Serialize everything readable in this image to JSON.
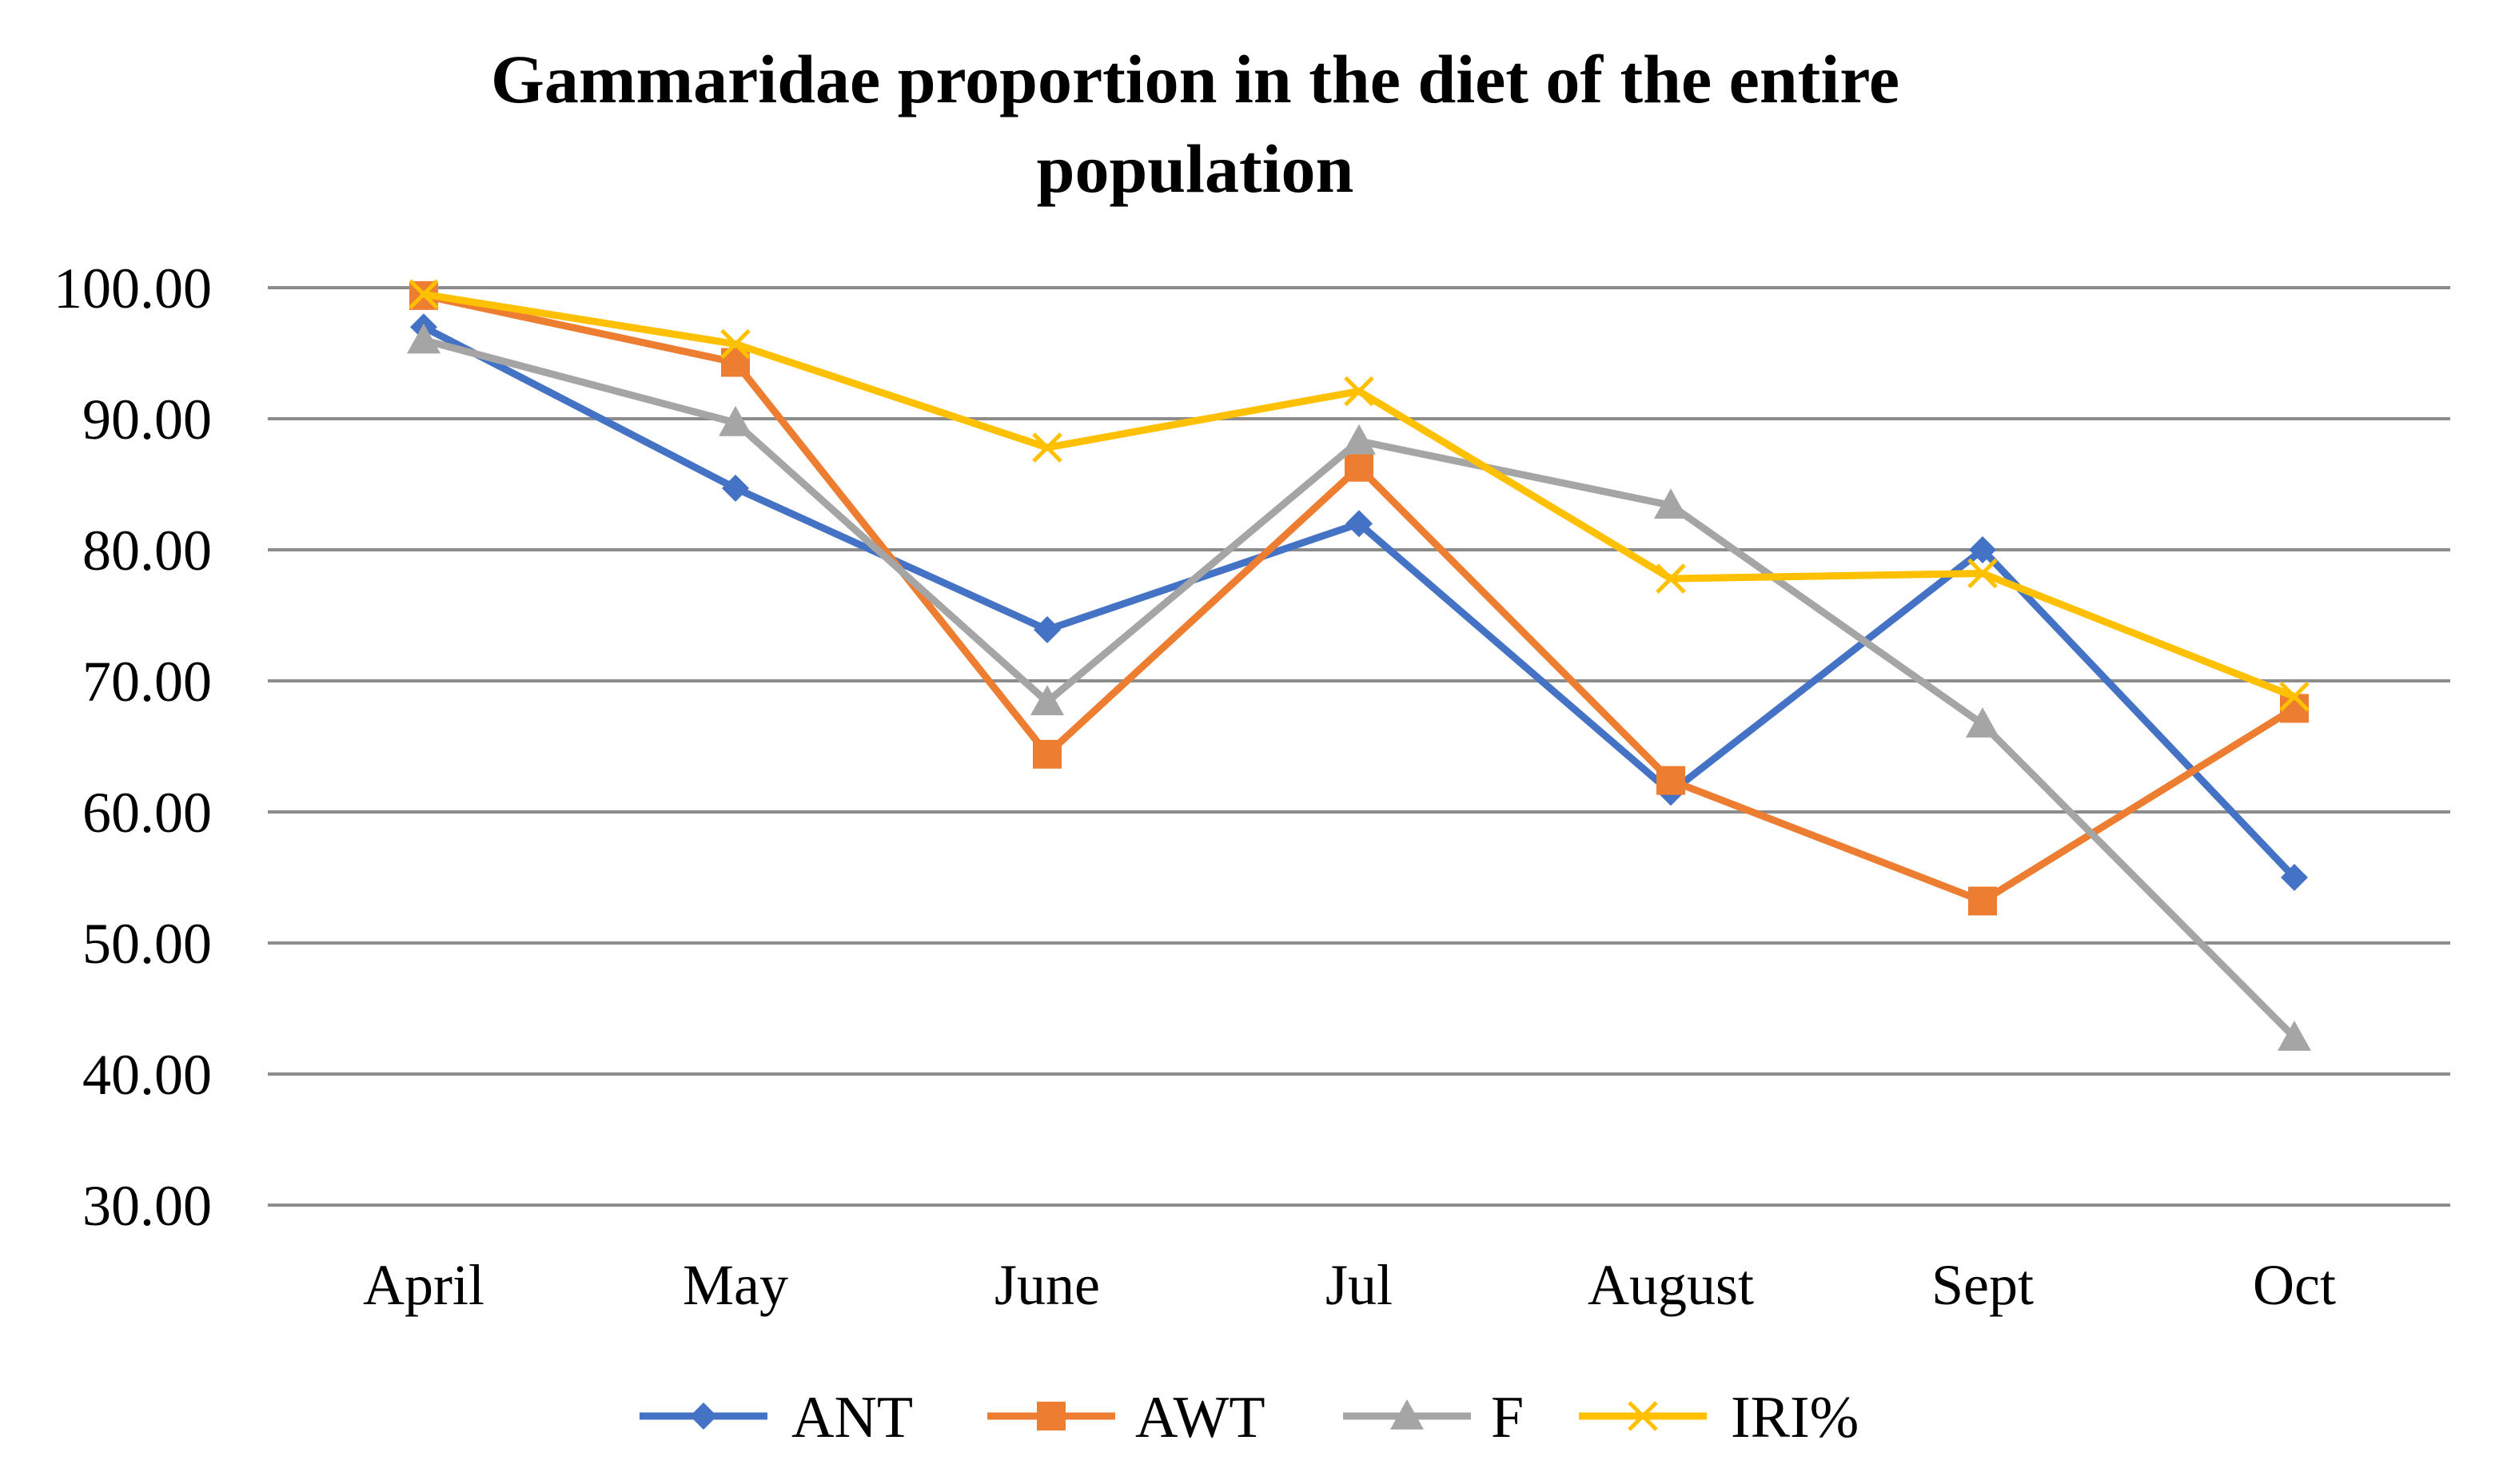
{
  "chart_data": {
    "type": "line",
    "title_lines": [
      "Gammaridae proportion in the diet of the entire",
      "population"
    ],
    "xlabel": "",
    "ylabel": "",
    "categories": [
      "April",
      "May",
      "June",
      "Jul",
      "August",
      "Sept",
      "Oct"
    ],
    "ylim": [
      30,
      100
    ],
    "yticks": [
      "30.00",
      "40.00",
      "50.00",
      "60.00",
      "70.00",
      "80.00",
      "90.00",
      "100.00"
    ],
    "grid": true,
    "legend_position": "bottom",
    "series": [
      {
        "name": "ANT",
        "color": "#4472C4",
        "marker": "diamond",
        "values": [
          97.0,
          84.7,
          73.9,
          82.0,
          61.5,
          80.0,
          55.0
        ]
      },
      {
        "name": "AWT",
        "color": "#ED7D31",
        "marker": "square",
        "values": [
          99.4,
          94.3,
          64.4,
          86.3,
          62.4,
          53.2,
          67.9
        ]
      },
      {
        "name": "F",
        "color": "#A5A5A5",
        "marker": "triangle",
        "values": [
          96.0,
          89.7,
          68.4,
          88.3,
          83.4,
          66.7,
          42.8
        ]
      },
      {
        "name": "IRI%",
        "color": "#FFC000",
        "marker": "x",
        "values": [
          99.5,
          95.7,
          87.8,
          92.1,
          77.8,
          78.2,
          68.8
        ]
      }
    ]
  }
}
